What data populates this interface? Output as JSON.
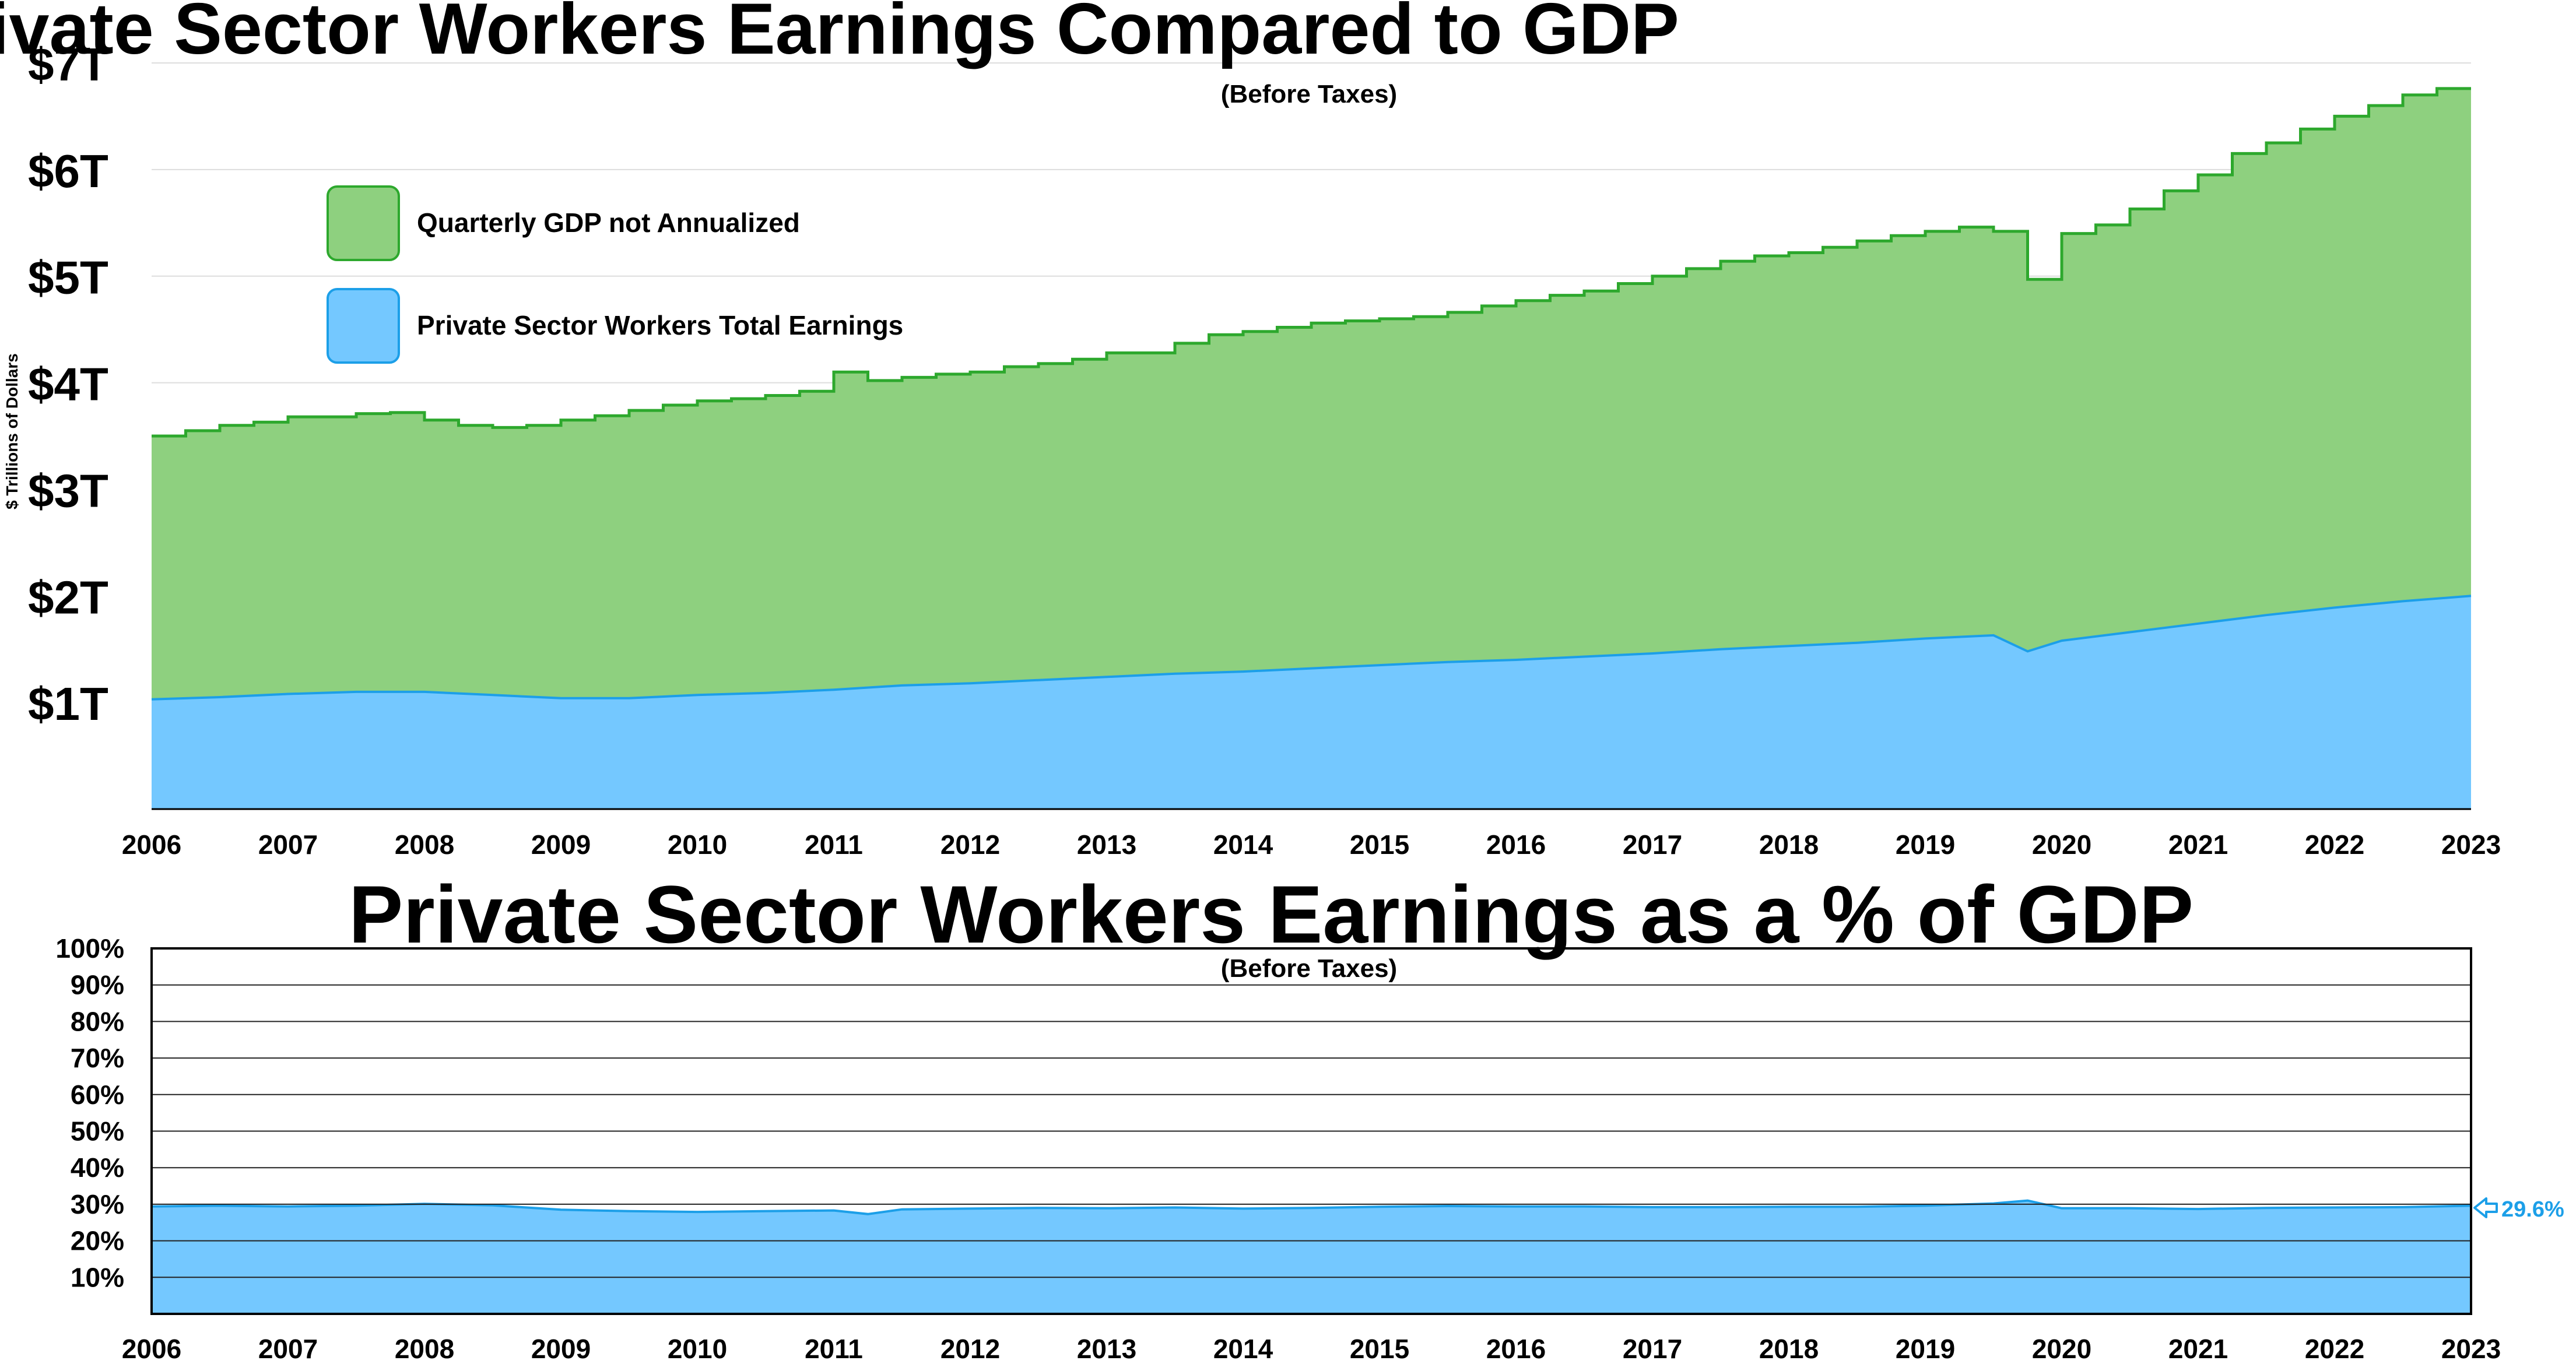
{
  "colors": {
    "gdp_fill": "#8ED07F",
    "gdp_line": "#2DA82D",
    "earn_fill": "#74C8FF",
    "earn_line": "#1C9FE8",
    "grid": "#dddddd",
    "axis": "#000000"
  },
  "chart_data": [
    {
      "type": "area",
      "title": "Private Sector Workers Earnings Compared to GDP",
      "subtitle": "(Before Taxes)",
      "ylabel": "$ Trillions of Dollars",
      "xlim": [
        2006,
        2023
      ],
      "ylim": [
        0,
        7
      ],
      "x_ticks": [
        "2006",
        "2007",
        "2008",
        "2009",
        "2010",
        "2011",
        "2012",
        "2013",
        "2014",
        "2015",
        "2016",
        "2017",
        "2018",
        "2019",
        "2020",
        "2021",
        "2022",
        "2023"
      ],
      "y_ticks": [
        {
          "value": 1,
          "label": "$1T"
        },
        {
          "value": 2,
          "label": "$2T"
        },
        {
          "value": 3,
          "label": "$3T"
        },
        {
          "value": 4,
          "label": "$4T"
        },
        {
          "value": 5,
          "label": "$5T"
        },
        {
          "value": 6,
          "label": "$6T"
        },
        {
          "value": 7,
          "label": "$7T"
        }
      ],
      "grid": true,
      "legend_position": "top-left",
      "series": [
        {
          "name": "Quarterly GDP not Annualized",
          "style": "step",
          "x": [
            2006.0,
            2006.25,
            2006.5,
            2006.75,
            2007.0,
            2007.25,
            2007.5,
            2007.75,
            2008.0,
            2008.25,
            2008.5,
            2008.75,
            2009.0,
            2009.25,
            2009.5,
            2009.75,
            2010.0,
            2010.25,
            2010.5,
            2010.75,
            2011.0,
            2011.25,
            2011.5,
            2011.75,
            2012.0,
            2012.25,
            2012.5,
            2012.75,
            2013.0,
            2013.25,
            2013.5,
            2013.75,
            2014.0,
            2014.25,
            2014.5,
            2014.75,
            2015.0,
            2015.25,
            2015.5,
            2015.75,
            2016.0,
            2016.25,
            2016.5,
            2016.75,
            2017.0,
            2017.25,
            2017.5,
            2017.75,
            2018.0,
            2018.25,
            2018.5,
            2018.75,
            2019.0,
            2019.25,
            2019.5,
            2019.75,
            2020.0,
            2020.25,
            2020.5,
            2020.75,
            2021.0,
            2021.25,
            2021.5,
            2021.75,
            2022.0,
            2022.25,
            2022.5,
            2022.75
          ],
          "values": [
            3.5,
            3.55,
            3.6,
            3.63,
            3.68,
            3.68,
            3.71,
            3.72,
            3.65,
            3.6,
            3.58,
            3.6,
            3.65,
            3.69,
            3.74,
            3.79,
            3.83,
            3.85,
            3.88,
            3.92,
            4.1,
            4.02,
            4.05,
            4.08,
            4.1,
            4.15,
            4.18,
            4.22,
            4.28,
            4.28,
            4.37,
            4.45,
            4.48,
            4.52,
            4.56,
            4.58,
            4.6,
            4.62,
            4.66,
            4.72,
            4.77,
            4.82,
            4.86,
            4.93,
            5.0,
            5.07,
            5.14,
            5.19,
            5.22,
            5.27,
            5.33,
            5.38,
            5.42,
            5.46,
            5.42,
            4.97,
            5.4,
            5.48,
            5.63,
            5.8,
            5.95,
            6.15,
            6.25,
            6.38,
            6.5,
            6.6,
            6.7,
            6.76
          ]
        },
        {
          "name": "Private Sector Workers Total Earnings",
          "style": "line",
          "x": [
            2006.0,
            2006.5,
            2007.0,
            2007.5,
            2008.0,
            2008.5,
            2009.0,
            2009.5,
            2010.0,
            2010.5,
            2011.0,
            2011.5,
            2012.0,
            2012.5,
            2013.0,
            2013.5,
            2014.0,
            2014.5,
            2015.0,
            2015.5,
            2016.0,
            2016.5,
            2017.0,
            2017.5,
            2018.0,
            2018.5,
            2019.0,
            2019.5,
            2019.75,
            2020.0,
            2020.5,
            2021.0,
            2021.5,
            2022.0,
            2022.5,
            2023.0
          ],
          "values": [
            1.03,
            1.05,
            1.08,
            1.1,
            1.1,
            1.07,
            1.04,
            1.04,
            1.07,
            1.09,
            1.12,
            1.16,
            1.18,
            1.21,
            1.24,
            1.27,
            1.29,
            1.32,
            1.35,
            1.38,
            1.4,
            1.43,
            1.46,
            1.5,
            1.53,
            1.56,
            1.6,
            1.63,
            1.48,
            1.58,
            1.66,
            1.74,
            1.82,
            1.89,
            1.95,
            2.0
          ]
        }
      ]
    },
    {
      "type": "area",
      "title": "Private Sector Workers Earnings as a % of GDP",
      "subtitle": "(Before Taxes)",
      "xlim": [
        2006,
        2023
      ],
      "ylim": [
        0,
        100
      ],
      "x_ticks": [
        "2006",
        "2007",
        "2008",
        "2009",
        "2010",
        "2011",
        "2012",
        "2013",
        "2014",
        "2015",
        "2016",
        "2017",
        "2018",
        "2019",
        "2020",
        "2021",
        "2022",
        "2023"
      ],
      "y_ticks": [
        {
          "value": 10,
          "label": "10%"
        },
        {
          "value": 20,
          "label": "20%"
        },
        {
          "value": 30,
          "label": "30%"
        },
        {
          "value": 40,
          "label": "40%"
        },
        {
          "value": 50,
          "label": "50%"
        },
        {
          "value": 60,
          "label": "60%"
        },
        {
          "value": 70,
          "label": "70%"
        },
        {
          "value": 80,
          "label": "80%"
        },
        {
          "value": 90,
          "label": "90%"
        },
        {
          "value": 100,
          "label": "100%"
        }
      ],
      "grid": true,
      "annotation": {
        "label": "29.6%",
        "value": 29.6,
        "position": "right-end"
      },
      "series": [
        {
          "name": "",
          "x": [
            2006.0,
            2006.5,
            2007.0,
            2007.5,
            2008.0,
            2008.5,
            2009.0,
            2009.5,
            2010.0,
            2010.5,
            2011.0,
            2011.25,
            2011.5,
            2012.0,
            2012.5,
            2013.0,
            2013.5,
            2014.0,
            2014.5,
            2015.0,
            2015.5,
            2016.0,
            2016.5,
            2017.0,
            2017.5,
            2018.0,
            2018.5,
            2019.0,
            2019.5,
            2019.75,
            2020.0,
            2020.5,
            2021.0,
            2021.5,
            2022.0,
            2022.5,
            2023.0
          ],
          "values": [
            29.4,
            29.6,
            29.4,
            29.6,
            30.1,
            29.7,
            28.5,
            28.1,
            27.9,
            28.1,
            28.3,
            27.3,
            28.6,
            28.8,
            29.0,
            28.9,
            29.1,
            28.8,
            29.0,
            29.3,
            29.5,
            29.4,
            29.4,
            29.2,
            29.2,
            29.3,
            29.3,
            29.6,
            30.2,
            31.0,
            28.9,
            28.9,
            28.7,
            29.0,
            29.1,
            29.2,
            29.6
          ]
        }
      ]
    }
  ]
}
